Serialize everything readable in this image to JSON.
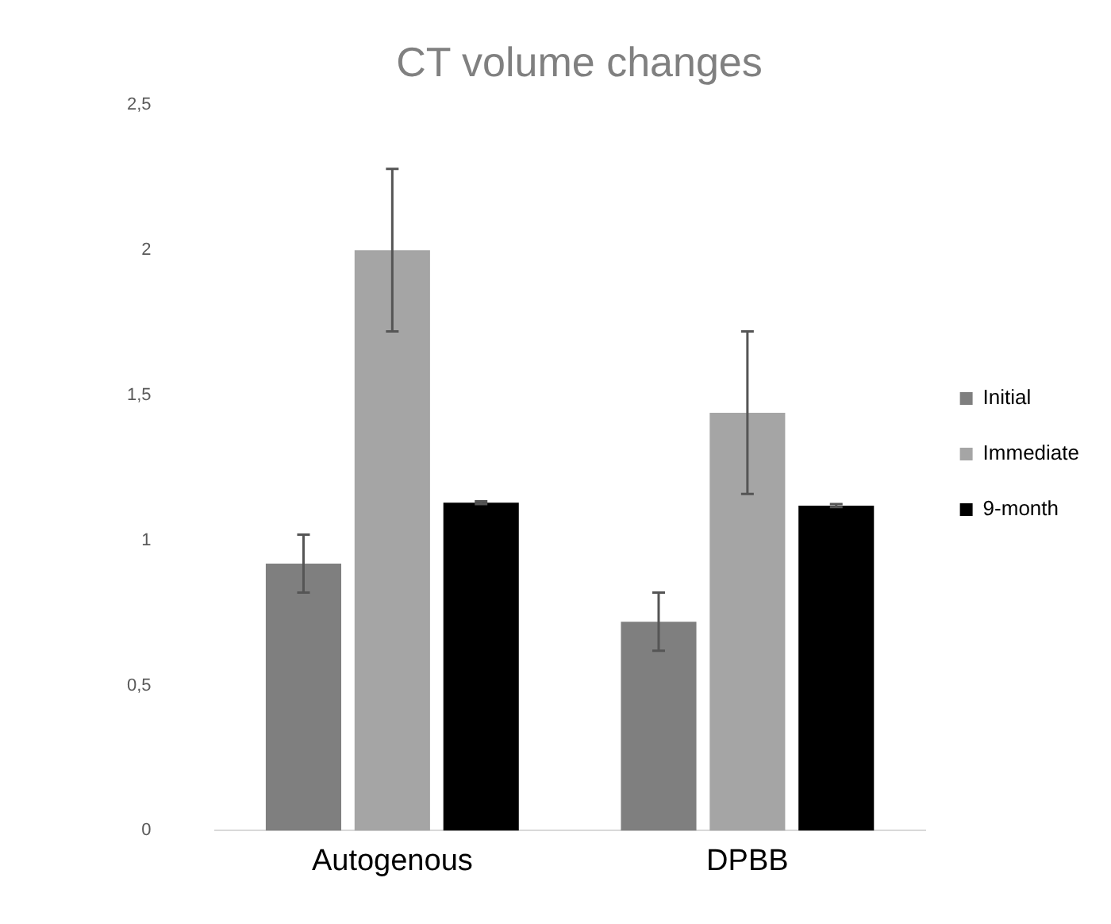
{
  "chart_data": {
    "type": "bar",
    "title": "CT volume changes",
    "categories": [
      "Autogenous",
      "DPBB"
    ],
    "series": [
      {
        "name": "Initial",
        "color": "#7f7f7f",
        "values": [
          0.92,
          0.72
        ],
        "errors": [
          0.1,
          0.1
        ]
      },
      {
        "name": "Immediate",
        "color": "#a5a5a5",
        "values": [
          2.0,
          1.44
        ],
        "errors": [
          0.28,
          0.28
        ]
      },
      {
        "name": "9-month",
        "color": "#000000",
        "values": [
          1.13,
          1.12
        ],
        "errors": [
          0.005,
          0.005
        ]
      }
    ],
    "ylim": [
      0,
      2.5
    ],
    "yticks": [
      0,
      {
        "value": 0.5,
        "label": "0,5"
      },
      1,
      {
        "value": 1.5,
        "label": "1,5"
      },
      2,
      {
        "value": 2.5,
        "label": "2,5"
      }
    ],
    "grid": false,
    "legend": "right"
  }
}
